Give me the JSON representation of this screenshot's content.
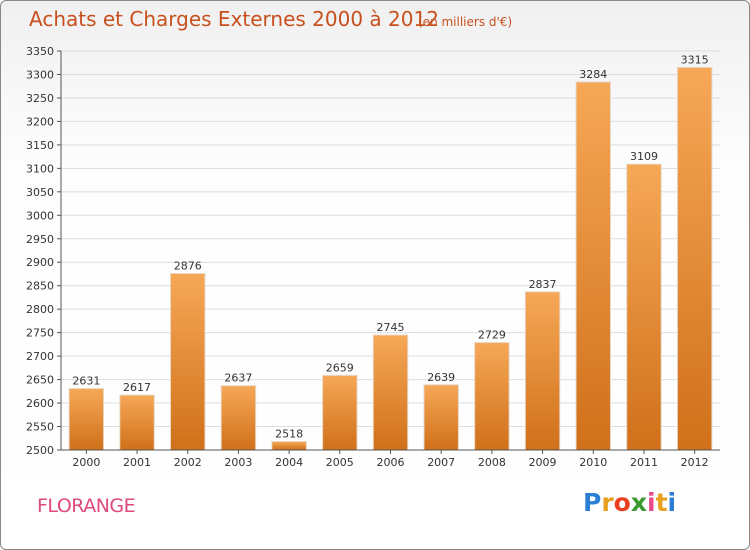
{
  "title": "Achats et Charges Externes 2000 à 2012",
  "subtitle": "(en milliers d'€)",
  "city": "FLORANGE",
  "brand": {
    "letters": [
      "P",
      "r",
      "o",
      "x",
      "i",
      "t",
      "i"
    ],
    "colors": [
      "#2a7fd4",
      "#e8a020",
      "#e84020",
      "#3a9a30",
      "#e84a8a",
      "#e8a020",
      "#2a7fd4"
    ]
  },
  "colors": {
    "bar_top": "#f6a857",
    "bar_bottom": "#d0701a",
    "axis": "#555555",
    "grid": "#dddddd",
    "accent": "#c8501e"
  },
  "chart_data": {
    "type": "bar",
    "categories": [
      "2000",
      "2001",
      "2002",
      "2003",
      "2004",
      "2005",
      "2006",
      "2007",
      "2008",
      "2009",
      "2010",
      "2011",
      "2012"
    ],
    "values": [
      2631,
      2617,
      2876,
      2637,
      2518,
      2659,
      2745,
      2639,
      2729,
      2837,
      3284,
      3109,
      3315
    ],
    "ylim": [
      2500,
      3350
    ],
    "yticks": [
      2500,
      2550,
      2600,
      2650,
      2700,
      2750,
      2800,
      2850,
      2900,
      2950,
      3000,
      3050,
      3100,
      3150,
      3200,
      3250,
      3300,
      3350
    ],
    "grid": true,
    "data_labels": true
  }
}
